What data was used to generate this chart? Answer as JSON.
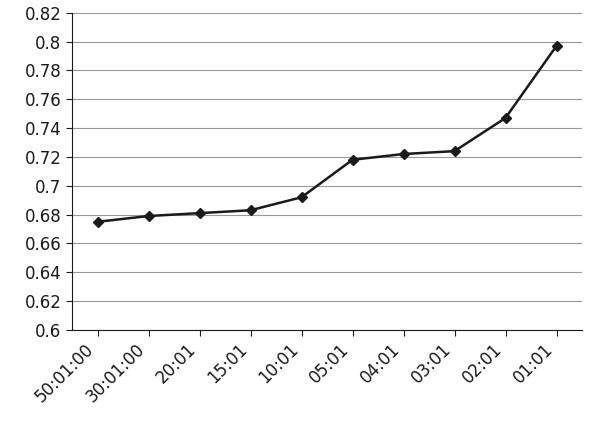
{
  "x_labels": [
    "50:01:00",
    "30:01:00",
    "20:01",
    "15:01",
    "10:01",
    "05:01",
    "04:01",
    "03:01",
    "02:01",
    "01:01"
  ],
  "y_values": [
    0.675,
    0.679,
    0.681,
    0.683,
    0.692,
    0.718,
    0.722,
    0.724,
    0.747,
    0.797
  ],
  "ylim": [
    0.6,
    0.82
  ],
  "yticks": [
    0.6,
    0.62,
    0.64,
    0.66,
    0.68,
    0.7,
    0.72,
    0.74,
    0.76,
    0.78,
    0.8,
    0.82
  ],
  "ytick_labels": [
    "0.6",
    "0.62",
    "0.64",
    "0.66",
    "0.68",
    "0.7",
    "0.72",
    "0.74",
    "0.76",
    "0.78",
    "0.8",
    "0.82"
  ],
  "line_color": "#1a1a1a",
  "marker": "D",
  "marker_size": 5,
  "marker_color": "#1a1a1a",
  "line_width": 1.8,
  "background_color": "#ffffff",
  "grid_color": "#999999",
  "tick_label_fontsize": 12,
  "tick_label_color": "#1a1a1a"
}
